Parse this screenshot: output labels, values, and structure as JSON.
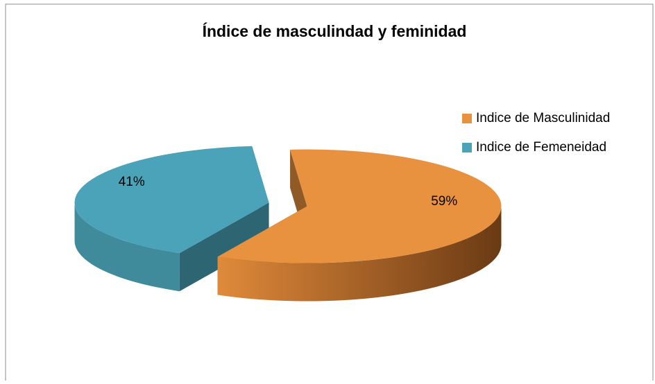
{
  "chart_data": {
    "type": "pie3d",
    "title": "Índice de masculindad y feminidad",
    "categories": [
      "Indice de Masculinidad",
      "Indice de Femeneidad"
    ],
    "values": [
      59,
      41
    ],
    "value_labels": [
      "59%",
      "41%"
    ],
    "colors": [
      "#e8913f",
      "#4aa3b8"
    ],
    "legend": "right"
  }
}
